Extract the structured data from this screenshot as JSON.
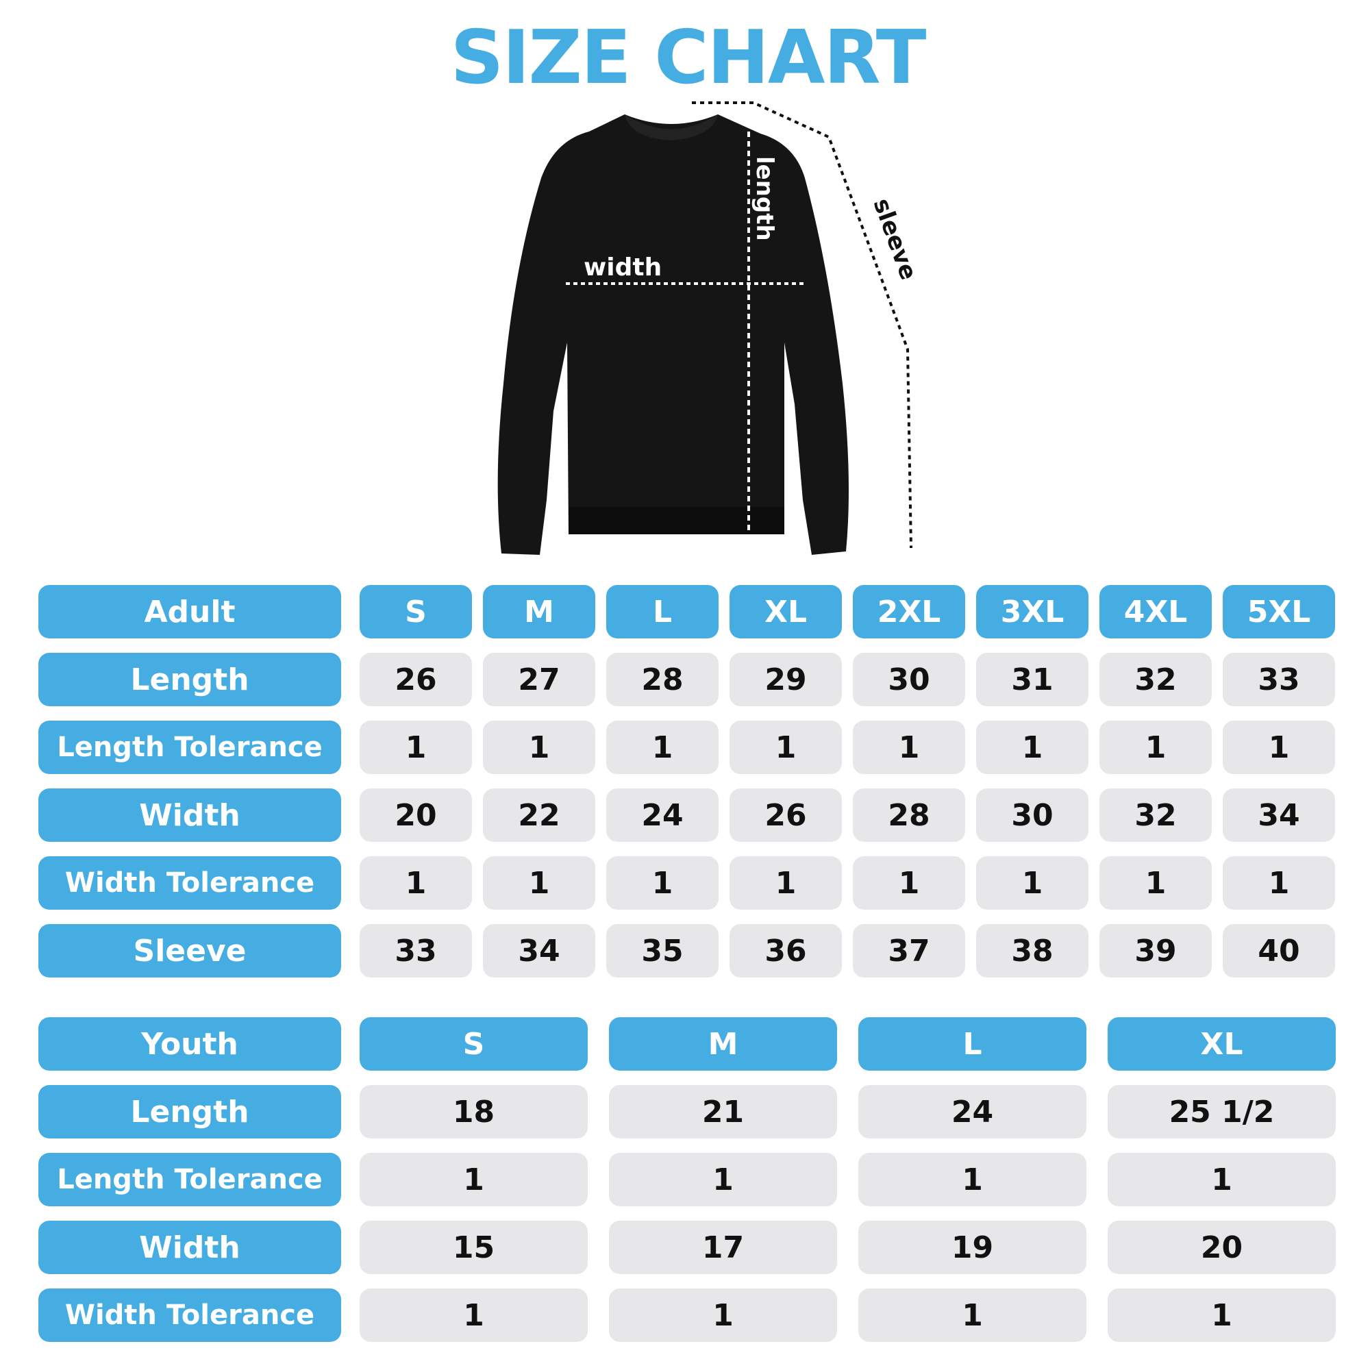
{
  "title": "SIZE CHART",
  "colors": {
    "accent": "#45ade2",
    "cell": "#e7e7e9",
    "text": "#111111"
  },
  "diagram": {
    "width_label": "width",
    "length_label": "length",
    "sleeve_label": "sleeve",
    "garment": "black crewneck sweatshirt"
  },
  "adult": {
    "header": "Adult",
    "sizes": [
      "S",
      "M",
      "L",
      "XL",
      "2XL",
      "3XL",
      "4XL",
      "5XL"
    ],
    "rows": [
      {
        "label": "Length",
        "values": [
          "26",
          "27",
          "28",
          "29",
          "30",
          "31",
          "32",
          "33"
        ]
      },
      {
        "label": "Length Tolerance",
        "values": [
          "1",
          "1",
          "1",
          "1",
          "1",
          "1",
          "1",
          "1"
        ]
      },
      {
        "label": "Width",
        "values": [
          "20",
          "22",
          "24",
          "26",
          "28",
          "30",
          "32",
          "34"
        ]
      },
      {
        "label": "Width Tolerance",
        "values": [
          "1",
          "1",
          "1",
          "1",
          "1",
          "1",
          "1",
          "1"
        ]
      },
      {
        "label": "Sleeve",
        "values": [
          "33",
          "34",
          "35",
          "36",
          "37",
          "38",
          "39",
          "40"
        ]
      }
    ]
  },
  "youth": {
    "header": "Youth",
    "sizes": [
      "S",
      "M",
      "L",
      "XL"
    ],
    "rows": [
      {
        "label": "Length",
        "values": [
          "18",
          "21",
          "24",
          "25 1/2"
        ]
      },
      {
        "label": "Length Tolerance",
        "values": [
          "1",
          "1",
          "1",
          "1"
        ]
      },
      {
        "label": "Width",
        "values": [
          "15",
          "17",
          "19",
          "20"
        ]
      },
      {
        "label": "Width Tolerance",
        "values": [
          "1",
          "1",
          "1",
          "1"
        ]
      }
    ]
  }
}
